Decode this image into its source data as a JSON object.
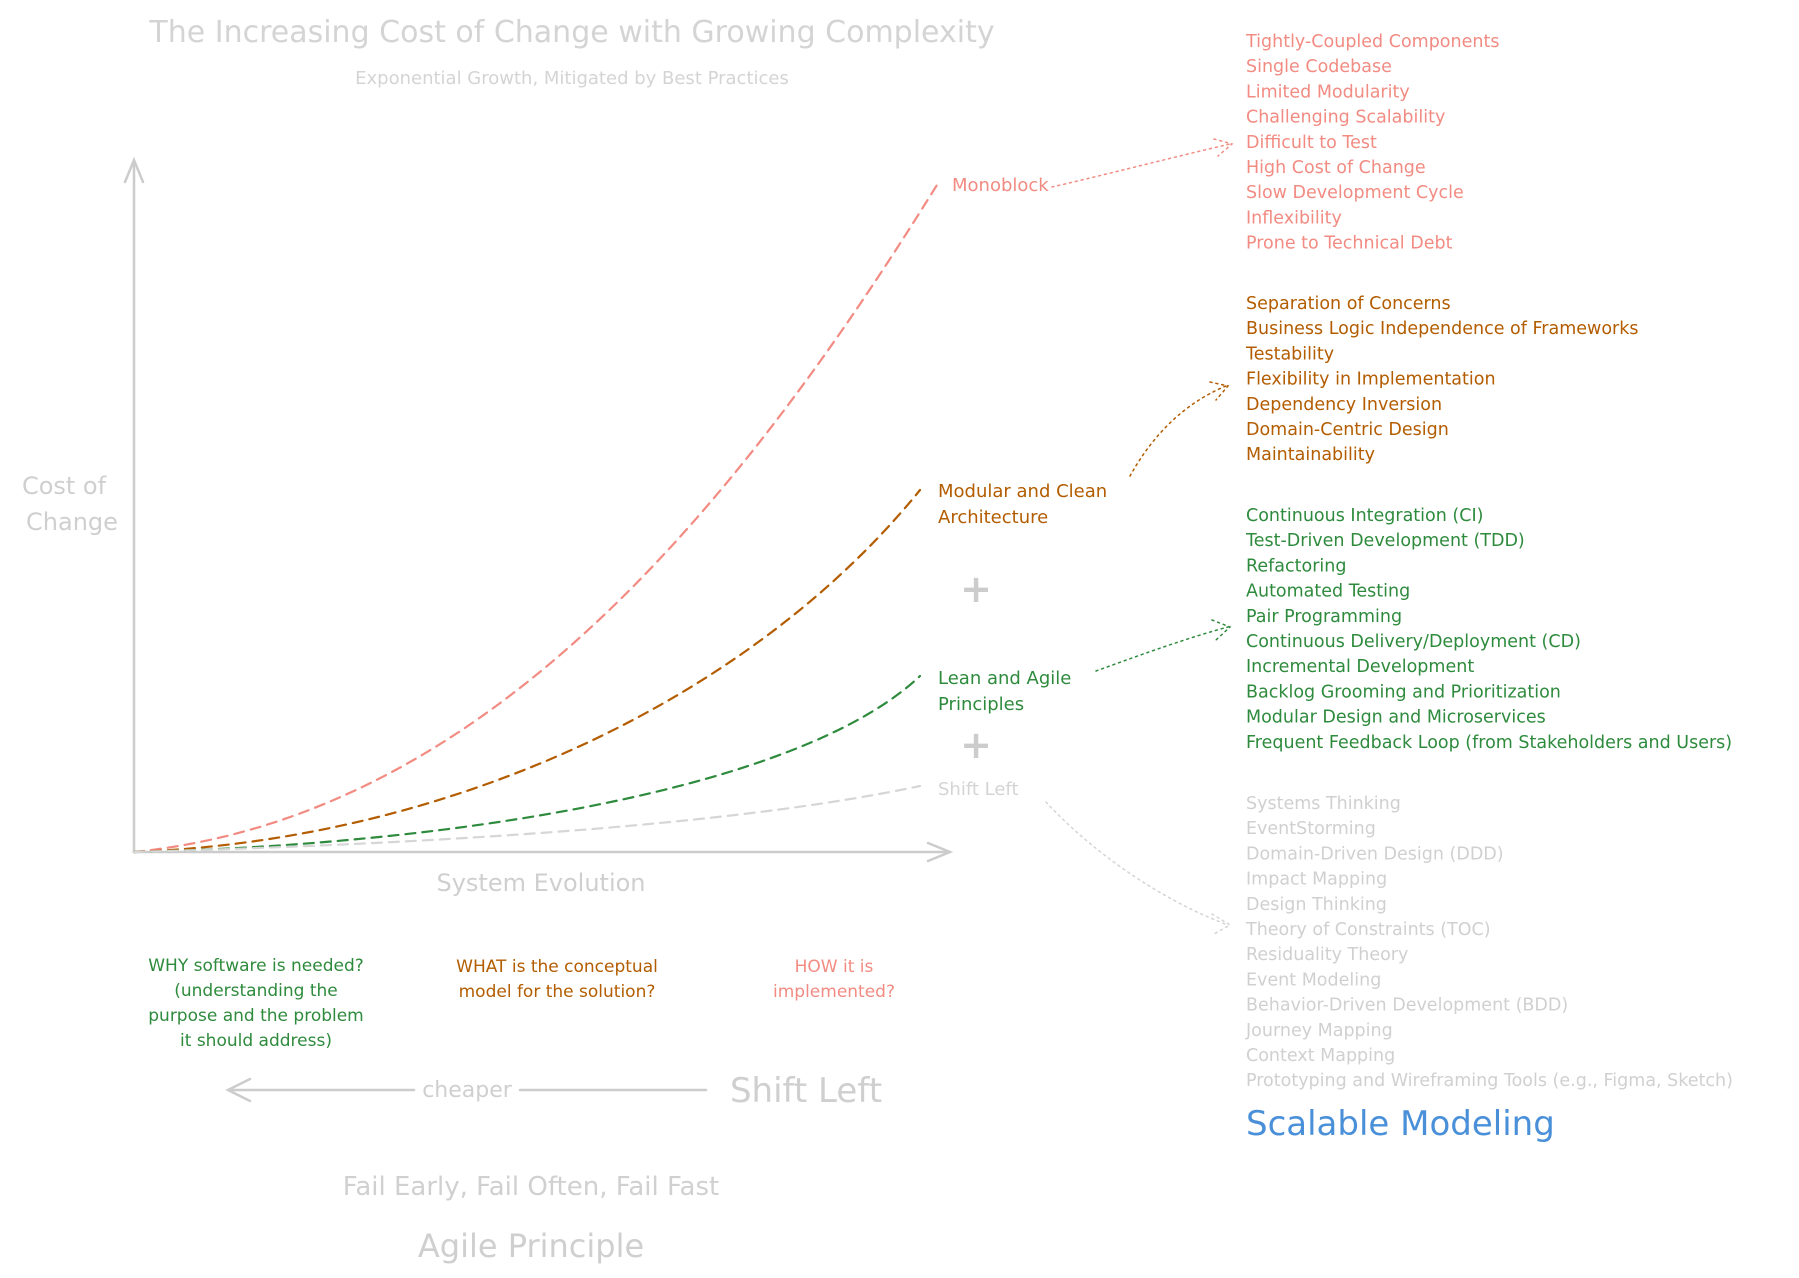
{
  "title": "The Increasing Cost of Change with Growing Complexity",
  "subtitle": "Exponential Growth, Mitigated by Best Practices",
  "axes": {
    "y_label": [
      "Cost of",
      "Change"
    ],
    "x_label": "System Evolution"
  },
  "colors": {
    "red": "#f28b82",
    "orange": "#b35c00",
    "green": "#2e8b3d",
    "gray": "#cfcfcf",
    "axis": "#cccccc",
    "blue": "#4a90d9"
  },
  "curves": [
    {
      "id": "monoblock",
      "label": [
        "Monoblock"
      ],
      "color": "red"
    },
    {
      "id": "modular",
      "label": [
        "Modular and Clean",
        "Architecture"
      ],
      "color": "orange"
    },
    {
      "id": "lean",
      "label": [
        "Lean and Agile",
        "Principles"
      ],
      "color": "green"
    },
    {
      "id": "shift",
      "label": [
        "Shift Left"
      ],
      "color": "gray"
    }
  ],
  "plus_sign": "+",
  "lists": {
    "monoblock": [
      "Tightly-Coupled Components",
      "Single Codebase",
      "Limited Modularity",
      "Challenging Scalability",
      "Difficult to Test",
      "High Cost of Change",
      "Slow Development Cycle",
      "Inflexibility",
      "Prone to Technical Debt"
    ],
    "modular": [
      "Separation of Concerns",
      "Business Logic Independence of Frameworks",
      "Testability",
      "Flexibility in Implementation",
      "Dependency Inversion",
      "Domain-Centric Design",
      "Maintainability"
    ],
    "lean": [
      "Continuous Integration (CI)",
      "Test-Driven Development (TDD)",
      "Refactoring",
      "Automated Testing",
      "Pair Programming",
      "Continuous Delivery/Deployment (CD)",
      "Incremental Development",
      "Backlog Grooming and Prioritization",
      "Modular Design and Microservices",
      "Frequent Feedback Loop (from Stakeholders and Users)"
    ],
    "shift": [
      "Systems Thinking",
      "EventStorming",
      "Domain-Driven Design (DDD)",
      "Impact Mapping",
      "Design Thinking",
      "Theory of Constraints (TOC)",
      "Residuality Theory",
      "Event Modeling",
      "Behavior-Driven Development (BDD)",
      "Journey Mapping",
      "Context Mapping",
      "Prototyping and Wireframing Tools (e.g., Figma, Sketch)"
    ]
  },
  "scalable_modeling": "Scalable Modeling",
  "questions": {
    "why": [
      "WHY software is needed?",
      "(understanding the",
      "purpose and the problem",
      "it should address)"
    ],
    "what": [
      "WHAT is the conceptual",
      "model for the solution?"
    ],
    "how": [
      "HOW it is",
      "implemented?"
    ]
  },
  "shift_arrow": {
    "label": "cheaper",
    "title": "Shift Left"
  },
  "agile": {
    "motto": "Fail Early, Fail Often, Fail Fast",
    "principle": "Agile Principle"
  }
}
